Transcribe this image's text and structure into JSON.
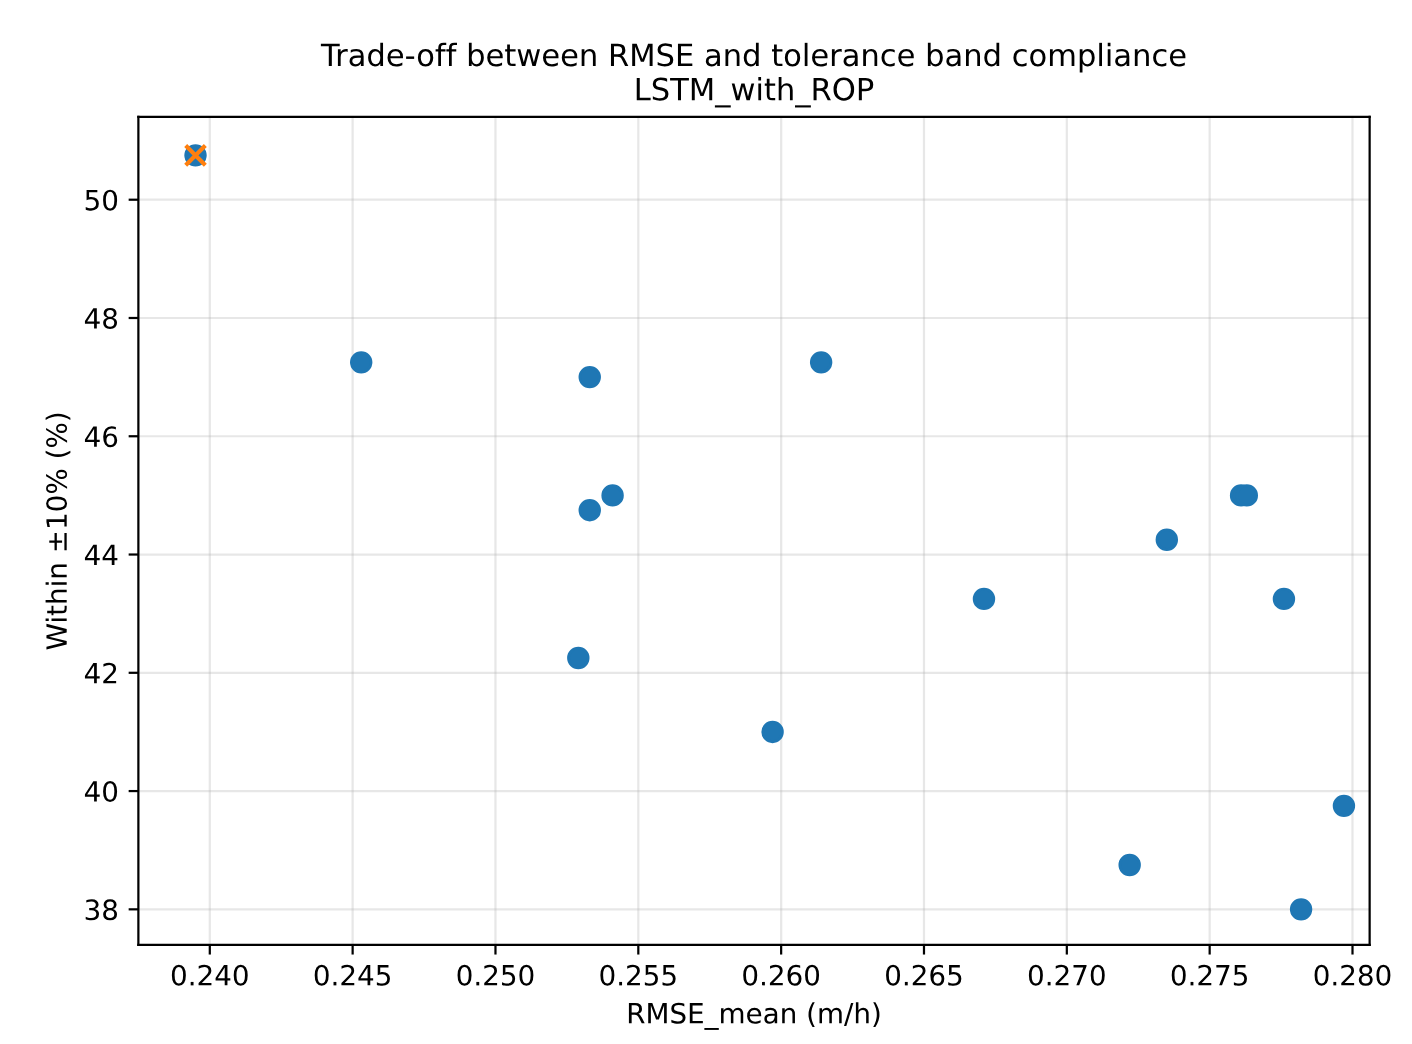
{
  "chart_data": {
    "type": "scatter",
    "title": "Trade-off between RMSE and tolerance band compliance\nLSTM_with_ROP",
    "xlabel": "RMSE_mean (m/h)",
    "ylabel": "Within ±10% (%)",
    "series": [
      {
        "color": "#1f77b4",
        "marker": "circle",
        "x": [
          0.2395,
          0.2453,
          0.2533,
          0.2533,
          0.2541,
          0.2529,
          0.2614,
          0.2597,
          0.2671,
          0.2722,
          0.2735,
          0.2761,
          0.2763,
          0.2776,
          0.2782,
          0.2797
        ],
        "values": [
          50.75,
          47.25,
          47.0,
          44.75,
          45.0,
          42.25,
          47.25,
          41.0,
          43.25,
          38.75,
          44.25,
          45.0,
          45.0,
          43.25,
          38.0,
          39.75
        ]
      },
      {
        "color": "#ff7f0e",
        "marker": "cross",
        "x": [
          0.2395
        ],
        "values": [
          50.75
        ]
      }
    ],
    "xlim": [
      0.2375,
      0.2806
    ],
    "ylim": [
      37.4,
      51.4
    ],
    "xticks": [
      {
        "value": 0.24,
        "label": "0.240"
      },
      {
        "value": 0.245,
        "label": "0.245"
      },
      {
        "value": 0.25,
        "label": "0.250"
      },
      {
        "value": 0.255,
        "label": "0.255"
      },
      {
        "value": 0.26,
        "label": "0.260"
      },
      {
        "value": 0.265,
        "label": "0.265"
      },
      {
        "value": 0.27,
        "label": "0.270"
      },
      {
        "value": 0.275,
        "label": "0.275"
      },
      {
        "value": 0.28,
        "label": "0.280"
      }
    ],
    "yticks": [
      38,
      40,
      42,
      44,
      46,
      48,
      50
    ],
    "grid": true
  }
}
